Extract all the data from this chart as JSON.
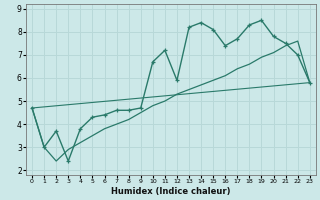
{
  "xlabel": "Humidex (Indice chaleur)",
  "ylabel": "",
  "bg_color": "#cce8e8",
  "grid_color": "#b8d8d8",
  "line_color": "#2a7a6a",
  "xlim": [
    -0.5,
    23.5
  ],
  "ylim": [
    1.8,
    9.2
  ],
  "xticks": [
    0,
    1,
    2,
    3,
    4,
    5,
    6,
    7,
    8,
    9,
    10,
    11,
    12,
    13,
    14,
    15,
    16,
    17,
    18,
    19,
    20,
    21,
    22,
    23
  ],
  "yticks": [
    2,
    3,
    4,
    5,
    6,
    7,
    8,
    9
  ],
  "curve1_x": [
    0,
    1,
    2,
    3,
    4,
    5,
    6,
    7,
    8,
    9,
    10,
    11,
    12,
    13,
    14,
    15,
    16,
    17,
    18,
    19,
    20,
    21,
    22,
    23
  ],
  "curve1_y": [
    4.7,
    3.0,
    3.7,
    2.4,
    3.8,
    4.3,
    4.4,
    4.6,
    4.6,
    4.7,
    6.7,
    7.2,
    5.9,
    8.2,
    8.4,
    8.1,
    7.4,
    7.7,
    8.3,
    8.5,
    7.8,
    7.5,
    7.0,
    5.8
  ],
  "curve2_x": [
    0,
    1,
    2,
    3,
    4,
    5,
    6,
    7,
    8,
    9,
    10,
    11,
    12,
    13,
    14,
    15,
    16,
    17,
    18,
    19,
    20,
    21,
    22,
    23
  ],
  "curve2_y": [
    4.7,
    3.0,
    2.4,
    2.9,
    3.2,
    3.5,
    3.8,
    4.0,
    4.2,
    4.5,
    4.8,
    5.0,
    5.3,
    5.5,
    5.7,
    5.9,
    6.1,
    6.4,
    6.6,
    6.9,
    7.1,
    7.4,
    7.6,
    5.8
  ],
  "curve3_x": [
    0,
    23
  ],
  "curve3_y": [
    4.7,
    5.8
  ]
}
